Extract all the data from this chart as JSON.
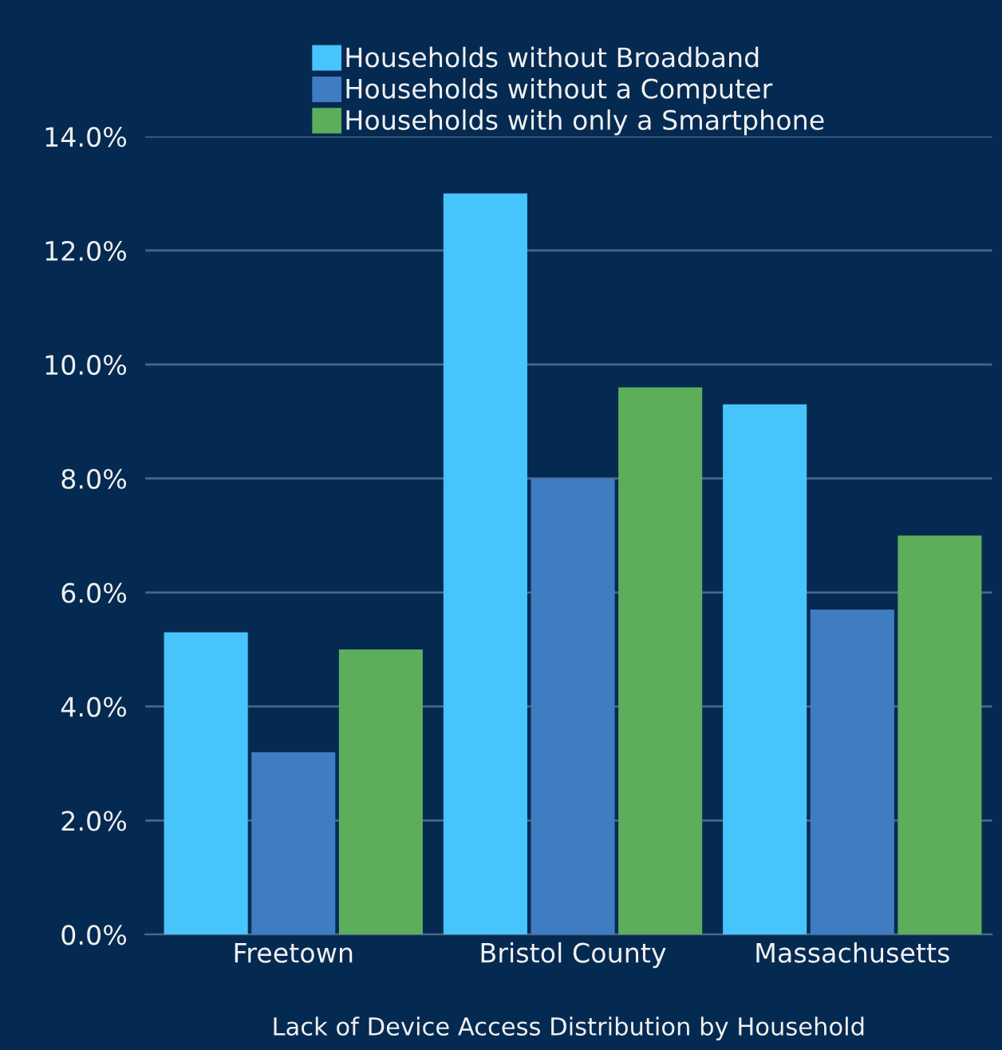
{
  "chart_data": {
    "type": "bar",
    "xlabel": "Lack of Device Access Distribution by Household",
    "categories": [
      "Freetown",
      "Bristol County",
      "Massachusetts"
    ],
    "series": [
      {
        "name": "Households without Broadband",
        "color": "#48c4fc",
        "values": [
          5.3,
          13.0,
          9.3
        ]
      },
      {
        "name": "Households without a Computer",
        "color": "#3f7cc2",
        "values": [
          3.2,
          8.0,
          5.7
        ]
      },
      {
        "name": "Households with only a Smartphone",
        "color": "#5dae5b",
        "values": [
          5.0,
          9.6,
          7.0
        ]
      }
    ],
    "ylim": [
      0,
      14
    ],
    "yticks": [
      {
        "value": 0,
        "label": "0.0%"
      },
      {
        "value": 2,
        "label": "2.0%"
      },
      {
        "value": 4,
        "label": "4.0%"
      },
      {
        "value": 6,
        "label": "6.0%"
      },
      {
        "value": 8,
        "label": "8.0%"
      },
      {
        "value": 10,
        "label": "10.0%"
      },
      {
        "value": 12,
        "label": "12.0%"
      },
      {
        "value": 14,
        "label": "14.0%"
      }
    ],
    "grid": "y",
    "legend": "top"
  }
}
